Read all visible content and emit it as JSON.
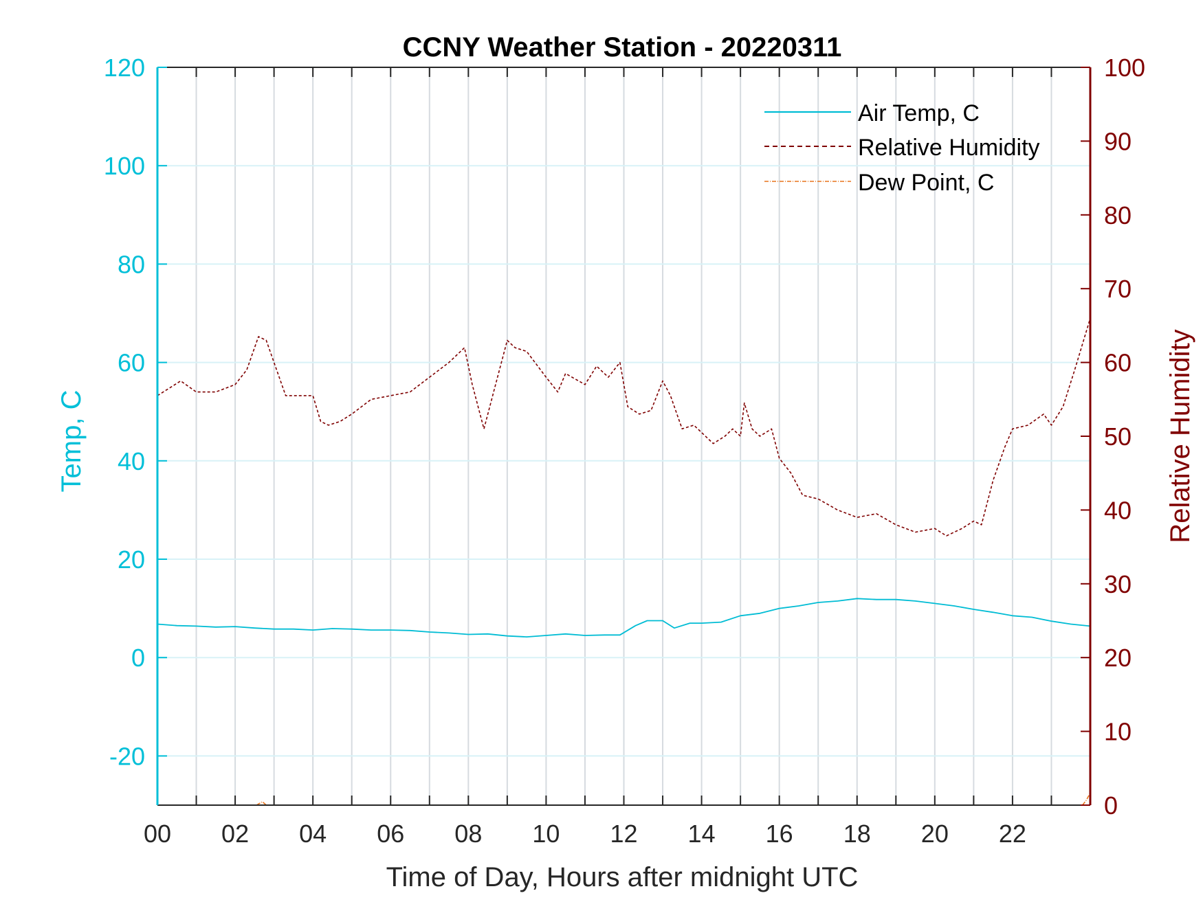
{
  "chart_data": {
    "type": "line",
    "title": "CCNY Weather Station - 20220311",
    "xlabel": "Time of Day, Hours after midnight UTC",
    "ylabel_left": "Temp, C",
    "ylabel_right": "Relative Humidity",
    "xlim": [
      0,
      24
    ],
    "ylim_left": [
      -30,
      120
    ],
    "ylim_right": [
      0,
      100
    ],
    "x_ticks": [
      0,
      2,
      4,
      6,
      8,
      10,
      12,
      14,
      16,
      18,
      20,
      22
    ],
    "x_tick_labels": [
      "00",
      "02",
      "04",
      "06",
      "08",
      "10",
      "12",
      "14",
      "16",
      "18",
      "20",
      "22"
    ],
    "y_ticks_left": [
      -20,
      0,
      20,
      40,
      60,
      80,
      100,
      120
    ],
    "y_tick_labels_left": [
      "-20",
      "0",
      "20",
      "40",
      "60",
      "80",
      "100",
      "120"
    ],
    "y_ticks_right": [
      0,
      10,
      20,
      30,
      40,
      50,
      60,
      70,
      80,
      90,
      100
    ],
    "y_tick_labels_right": [
      "0",
      "10",
      "20",
      "30",
      "40",
      "50",
      "60",
      "70",
      "80",
      "90",
      "100"
    ],
    "grid": true,
    "legend_position": "top-right",
    "colors": {
      "left_axis": "#00bfd8",
      "right_axis": "#800000",
      "air_temp": "#00bcd4",
      "humidity": "#7f0000",
      "dew_point": "#e8741c"
    },
    "series": [
      {
        "name": "Air Temp, C",
        "axis": "left",
        "style": "solid",
        "x": [
          0,
          0.5,
          1,
          1.5,
          2,
          2.5,
          3,
          3.5,
          4,
          4.5,
          5,
          5.5,
          6,
          6.5,
          7,
          7.5,
          8,
          8.5,
          9,
          9.5,
          10,
          10.5,
          11,
          11.5,
          11.9,
          12.3,
          12.6,
          13,
          13.3,
          13.7,
          14,
          14.5,
          15,
          15.5,
          16,
          16.5,
          17,
          17.5,
          18,
          18.5,
          19,
          19.5,
          20,
          20.5,
          21,
          21.5,
          22,
          22.5,
          23,
          23.5,
          24
        ],
        "y": [
          6.8,
          6.5,
          6.4,
          6.2,
          6.3,
          6.0,
          5.8,
          5.8,
          5.6,
          5.9,
          5.8,
          5.6,
          5.6,
          5.5,
          5.2,
          5.0,
          4.7,
          4.8,
          4.4,
          4.2,
          4.5,
          4.8,
          4.5,
          4.6,
          4.6,
          6.5,
          7.5,
          7.5,
          6.0,
          7.0,
          7.0,
          7.2,
          8.5,
          9.0,
          10.0,
          10.5,
          11.2,
          11.5,
          12.0,
          11.8,
          11.8,
          11.5,
          11.0,
          10.5,
          9.8,
          9.2,
          8.5,
          8.2,
          7.4,
          6.8,
          6.4
        ]
      },
      {
        "name": "Relative Humidity",
        "axis": "right",
        "style": "dashed",
        "x": [
          0,
          0.3,
          0.6,
          1,
          1.5,
          2,
          2.3,
          2.6,
          2.8,
          3,
          3.3,
          3.7,
          4,
          4.2,
          4.4,
          4.7,
          5,
          5.5,
          6,
          6.5,
          7,
          7.5,
          7.9,
          8.1,
          8.4,
          8.7,
          9,
          9.2,
          9.5,
          10,
          10.3,
          10.5,
          11,
          11.3,
          11.6,
          11.9,
          12.1,
          12.4,
          12.7,
          13,
          13.2,
          13.5,
          13.8,
          14,
          14.3,
          14.6,
          14.8,
          15,
          15.1,
          15.3,
          15.5,
          15.8,
          16,
          16.3,
          16.6,
          17,
          17.5,
          18,
          18.5,
          19,
          19.5,
          20,
          20.3,
          20.7,
          21,
          21.2,
          21.5,
          21.8,
          22,
          22.4,
          22.8,
          23,
          23.3,
          23.6,
          24
        ],
        "y": [
          55.5,
          56.5,
          57.5,
          56,
          56,
          57,
          59,
          63.5,
          63,
          60,
          55.5,
          55.5,
          55.5,
          52,
          51.5,
          52,
          53,
          55,
          55.5,
          56,
          58,
          60,
          62,
          57,
          51,
          57,
          63,
          62,
          61.5,
          58,
          56,
          58.5,
          57,
          59.5,
          58,
          60,
          54,
          53,
          53.5,
          57.5,
          55.5,
          51,
          51.5,
          50.5,
          49,
          50,
          51,
          50,
          54.5,
          51,
          50,
          51,
          47,
          45,
          42,
          41.5,
          40,
          39,
          39.5,
          38,
          37,
          37.5,
          36.5,
          37.5,
          38.5,
          38,
          44,
          48.5,
          51,
          51.5,
          53,
          51.5,
          54,
          59,
          66
        ]
      },
      {
        "name": "Dew Point, C",
        "axis": "left",
        "style": "dash-dot",
        "x": [
          2.55,
          2.7,
          2.8,
          23.8,
          23.9,
          24
        ],
        "y": [
          -30,
          -29.3,
          -30,
          -30,
          -29,
          -27.5
        ]
      }
    ]
  }
}
